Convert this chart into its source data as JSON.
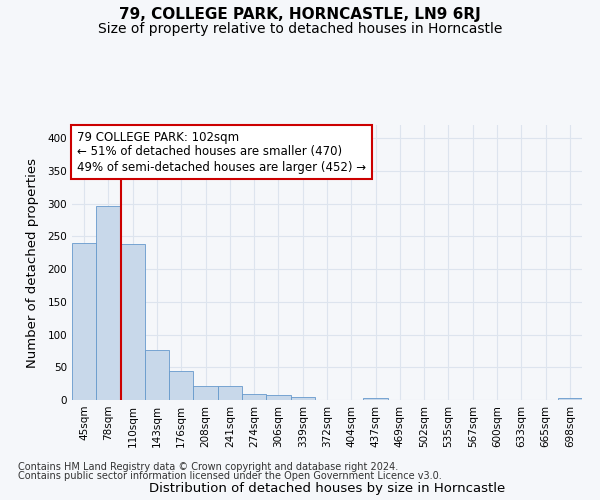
{
  "title": "79, COLLEGE PARK, HORNCASTLE, LN9 6RJ",
  "subtitle": "Size of property relative to detached houses in Horncastle",
  "xlabel": "Distribution of detached houses by size in Horncastle",
  "ylabel": "Number of detached properties",
  "categories": [
    "45sqm",
    "78sqm",
    "110sqm",
    "143sqm",
    "176sqm",
    "208sqm",
    "241sqm",
    "274sqm",
    "306sqm",
    "339sqm",
    "372sqm",
    "404sqm",
    "437sqm",
    "469sqm",
    "502sqm",
    "535sqm",
    "567sqm",
    "600sqm",
    "633sqm",
    "665sqm",
    "698sqm"
  ],
  "values": [
    240,
    297,
    238,
    76,
    44,
    21,
    21,
    9,
    7,
    4,
    0,
    0,
    3,
    0,
    0,
    0,
    0,
    0,
    0,
    0,
    3
  ],
  "bar_color": "#c8d8ea",
  "bar_edge_color": "#6699cc",
  "red_line_index": 1.5,
  "annotation_title": "79 COLLEGE PARK: 102sqm",
  "annotation_line1": "← 51% of detached houses are smaller (470)",
  "annotation_line2": "49% of semi-detached houses are larger (452) →",
  "annotation_box_color": "#ffffff",
  "annotation_box_edge": "#cc0000",
  "red_line_color": "#cc0000",
  "ylim": [
    0,
    420
  ],
  "yticks": [
    0,
    50,
    100,
    150,
    200,
    250,
    300,
    350,
    400
  ],
  "footer1": "Contains HM Land Registry data © Crown copyright and database right 2024.",
  "footer2": "Contains public sector information licensed under the Open Government Licence v3.0.",
  "background_color": "#f5f7fa",
  "plot_bg_color": "#f5f7fa",
  "grid_color": "#dde4ee",
  "title_fontsize": 11,
  "subtitle_fontsize": 10,
  "axis_label_fontsize": 9.5,
  "tick_fontsize": 7.5,
  "annotation_fontsize": 8.5,
  "footer_fontsize": 7
}
